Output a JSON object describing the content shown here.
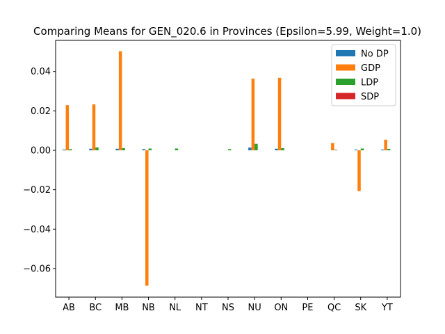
{
  "chart_data": {
    "type": "bar",
    "title": "Comparing Means for GEN_020.6 in Provinces (Epsilon=5.99, Weight=1.0)",
    "xlabel": "",
    "ylabel": "",
    "ylim": [
      -0.0745,
      0.0558
    ],
    "yticks": [
      -0.06,
      -0.04,
      -0.02,
      0.0,
      0.02,
      0.04
    ],
    "ytick_labels": [
      "−0.06",
      "−0.04",
      "−0.02",
      "0.00",
      "0.02",
      "0.04"
    ],
    "categories": [
      "AB",
      "BC",
      "MB",
      "NB",
      "NL",
      "NT",
      "NS",
      "NU",
      "ON",
      "PE",
      "QC",
      "SK",
      "YT"
    ],
    "legend_position": "top-right",
    "series": [
      {
        "name": "No DP",
        "color": "#1f77b4",
        "values": [
          0.0004,
          0.0008,
          0.0008,
          0.0006,
          0.0,
          0.0,
          0.0,
          0.0014,
          0.0008,
          0.0,
          0.0,
          0.0004,
          0.0004
        ]
      },
      {
        "name": "GDP",
        "color": "#ff7f0e",
        "values": [
          0.0229,
          0.0233,
          0.0503,
          -0.0687,
          0.0,
          0.0,
          0.0,
          0.0364,
          0.0368,
          0.0,
          0.0037,
          -0.0207,
          0.0054
        ]
      },
      {
        "name": "LDP",
        "color": "#2ca02c",
        "values": [
          0.0006,
          0.0015,
          0.0011,
          0.0009,
          0.0009,
          0.0,
          0.0006,
          0.0033,
          0.0011,
          0.0,
          0.0003,
          0.0009,
          0.0007
        ]
      },
      {
        "name": "SDP",
        "color": "#d62728",
        "values": [
          0.0,
          0.0,
          0.0,
          0.0,
          0.0,
          0.0,
          0.0,
          0.0,
          0.0,
          0.0,
          0.0,
          0.0,
          0.0
        ]
      }
    ]
  }
}
